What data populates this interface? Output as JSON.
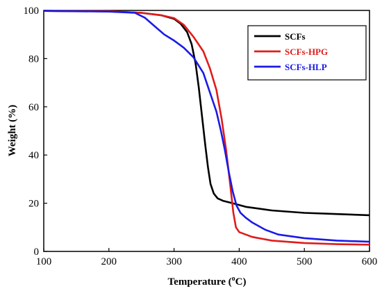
{
  "chart_data": {
    "type": "line",
    "xlabel_main": "Temperature (",
    "xlabel_sup": "o",
    "xlabel_tail": "C)",
    "ylabel": "Weight (%)",
    "xlim": [
      100,
      600
    ],
    "ylim": [
      0,
      100
    ],
    "xticks": [
      100,
      200,
      300,
      400,
      500,
      600
    ],
    "yticks": [
      0,
      20,
      40,
      60,
      80,
      100
    ],
    "grid": false,
    "legend_position": "top-right",
    "series": [
      {
        "name": "SCFs",
        "color": "#000000",
        "points": [
          [
            100,
            99.8
          ],
          [
            200,
            99.6
          ],
          [
            250,
            99.0
          ],
          [
            280,
            98.0
          ],
          [
            300,
            96.5
          ],
          [
            310,
            94.5
          ],
          [
            320,
            91.0
          ],
          [
            327,
            86.0
          ],
          [
            333,
            78.0
          ],
          [
            338,
            68.0
          ],
          [
            343,
            56.0
          ],
          [
            348,
            44.0
          ],
          [
            352,
            35.0
          ],
          [
            356,
            28.0
          ],
          [
            361,
            24.0
          ],
          [
            367,
            22.0
          ],
          [
            375,
            21.0
          ],
          [
            390,
            20.0
          ],
          [
            410,
            18.5
          ],
          [
            450,
            17.0
          ],
          [
            500,
            16.0
          ],
          [
            550,
            15.5
          ],
          [
            600,
            15.0
          ]
        ]
      },
      {
        "name": "SCFs-HPG",
        "color": "#e01b1b",
        "points": [
          [
            100,
            99.8
          ],
          [
            200,
            99.7
          ],
          [
            250,
            99.0
          ],
          [
            280,
            98.0
          ],
          [
            300,
            96.8
          ],
          [
            315,
            94.0
          ],
          [
            330,
            89.0
          ],
          [
            345,
            83.0
          ],
          [
            355,
            76.0
          ],
          [
            365,
            67.0
          ],
          [
            373,
            55.0
          ],
          [
            380,
            42.0
          ],
          [
            386,
            28.0
          ],
          [
            391,
            16.0
          ],
          [
            395,
            10.0
          ],
          [
            400,
            8.0
          ],
          [
            420,
            6.0
          ],
          [
            450,
            4.5
          ],
          [
            500,
            3.5
          ],
          [
            550,
            3.0
          ],
          [
            600,
            2.8
          ]
        ]
      },
      {
        "name": "SCFs-HLP",
        "color": "#1a1ae6",
        "points": [
          [
            100,
            99.8
          ],
          [
            200,
            99.5
          ],
          [
            240,
            99.0
          ],
          [
            255,
            97.0
          ],
          [
            270,
            93.5
          ],
          [
            285,
            90.0
          ],
          [
            300,
            87.5
          ],
          [
            315,
            84.5
          ],
          [
            330,
            80.5
          ],
          [
            345,
            74.0
          ],
          [
            355,
            66.0
          ],
          [
            365,
            58.0
          ],
          [
            372,
            50.0
          ],
          [
            378,
            42.0
          ],
          [
            384,
            33.0
          ],
          [
            390,
            25.0
          ],
          [
            396,
            19.0
          ],
          [
            402,
            16.0
          ],
          [
            410,
            14.0
          ],
          [
            420,
            12.0
          ],
          [
            440,
            9.0
          ],
          [
            460,
            7.0
          ],
          [
            500,
            5.5
          ],
          [
            550,
            4.5
          ],
          [
            600,
            4.0
          ]
        ]
      }
    ]
  }
}
